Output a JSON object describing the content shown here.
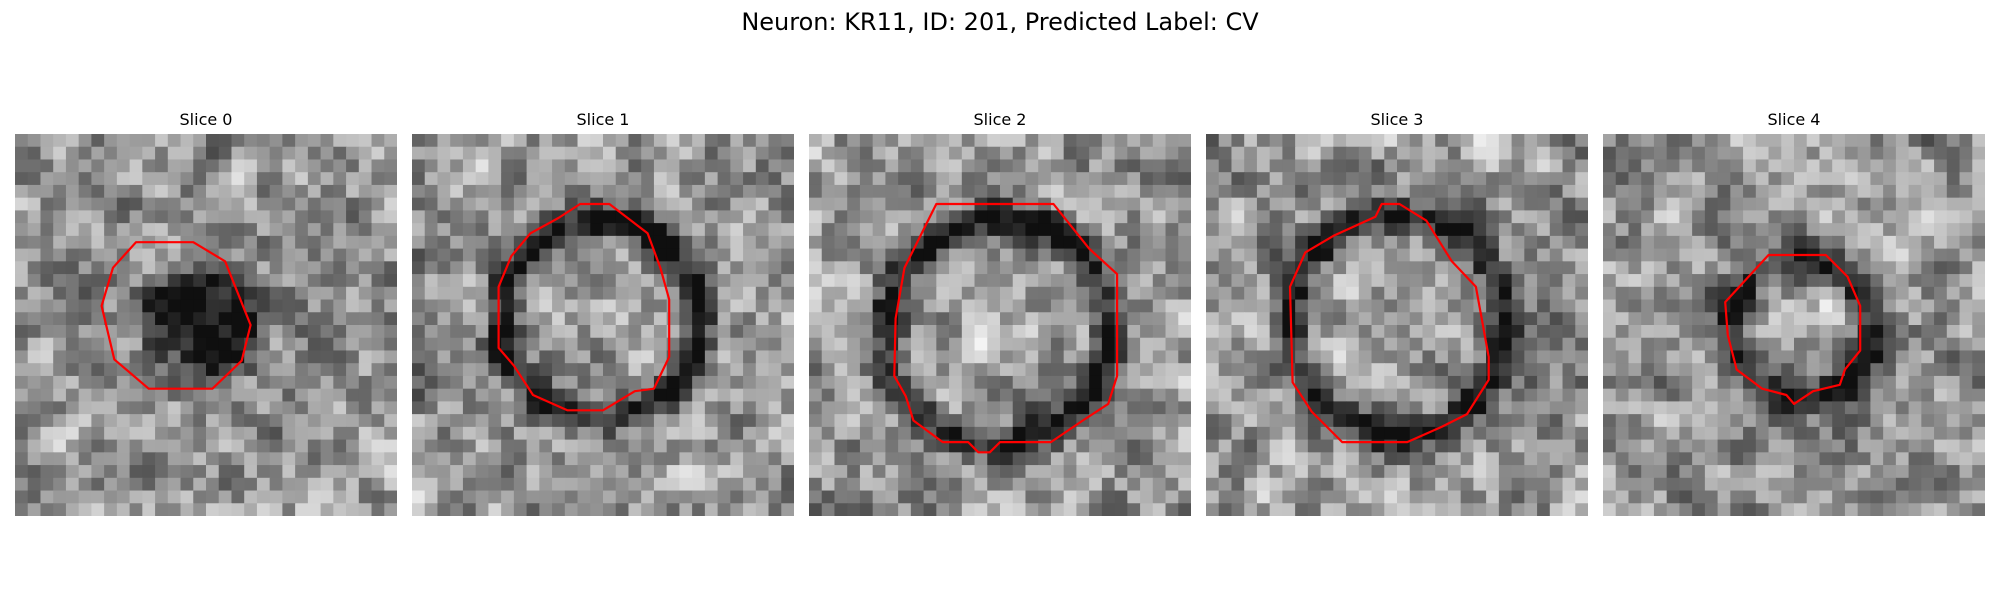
{
  "figure": {
    "title": "Neuron: KR11, ID: 201, Predicted Label: CV"
  },
  "panels": [
    {
      "title": "Slice 0"
    },
    {
      "title": "Slice 1"
    },
    {
      "title": "Slice 2"
    },
    {
      "title": "Slice 3"
    },
    {
      "title": "Slice 4"
    }
  ],
  "colors": {
    "contour": "#ff0000",
    "colormap": "gray",
    "background": "#ffffff"
  }
}
